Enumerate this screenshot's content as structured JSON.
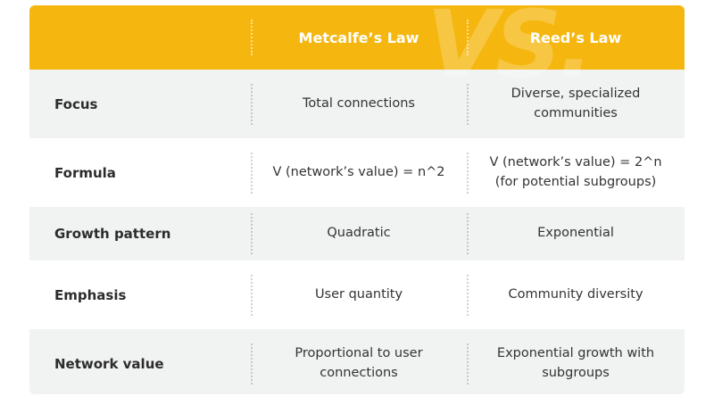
{
  "header": {
    "col1": "Metcalfe’s Law",
    "col2": "Reed’s Law",
    "watermark": "VS."
  },
  "rows": [
    {
      "label": "Focus",
      "metcalfe": "Total connections",
      "reed": "Diverse, specialized communities"
    },
    {
      "label": "Formula",
      "metcalfe": "V (network’s value) = n^2",
      "reed": "V (network’s value) = 2^n (for potential subgroups)"
    },
    {
      "label": "Growth pattern",
      "metcalfe": "Quadratic",
      "reed": "Exponential"
    },
    {
      "label": "Emphasis",
      "metcalfe": "User quantity",
      "reed": "Community diversity"
    },
    {
      "label": "Network value",
      "metcalfe": "Proportional to user connections",
      "reed": "Exponential growth with subgroups"
    }
  ],
  "colors": {
    "header_bg": "#f5b70f",
    "row_alt_bg": "#f1f2f2"
  }
}
